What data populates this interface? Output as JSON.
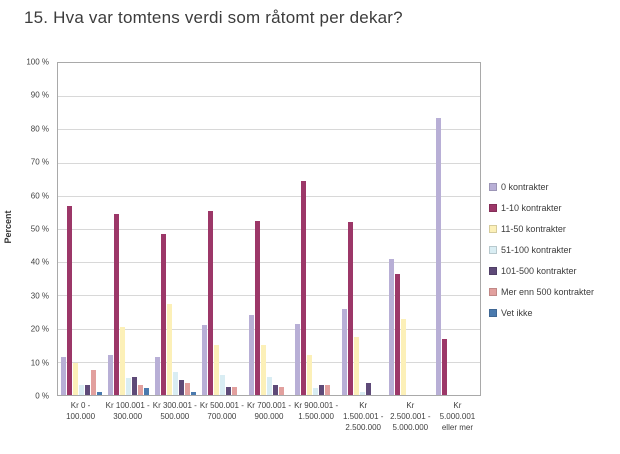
{
  "title": "15. Hva var tomtens verdi som råtomt per dekar?",
  "chart_data": {
    "type": "bar",
    "title": "15. Hva var tomtens verdi som råtomt per dekar?",
    "xlabel": "",
    "ylabel": "Percent",
    "ylim": [
      0,
      100
    ],
    "ytick_step": 10,
    "ytick_suffix": " %",
    "grid": true,
    "legend_position": "right",
    "categories": [
      "Kr 0 - 100.000",
      "Kr 100.001 - 300.000",
      "Kr 300.001 - 500.000",
      "Kr 500.001 - 700.000",
      "Kr 700.001 - 900.000",
      "Kr 900.001 - 1.500.000",
      "Kr 1.500.001 - 2.500.000",
      "Kr 2.500.001 - 5.000.000",
      "Kr 5.000.001 eller mer"
    ],
    "category_label_lines": [
      [
        "Kr 0 -",
        "100.000"
      ],
      [
        "Kr 100.001 -",
        "300.000"
      ],
      [
        "Kr 300.001 -",
        "500.000"
      ],
      [
        "Kr 500.001 -",
        "700.000"
      ],
      [
        "Kr 700.001 -",
        "900.000"
      ],
      [
        "Kr 900.001 -",
        "1.500.000"
      ],
      [
        "Kr",
        "1.500.001 -",
        "2.500.000"
      ],
      [
        "Kr",
        "2.500.001 -",
        "5.000.000"
      ],
      [
        "Kr",
        "5.000.001",
        "eller mer"
      ]
    ],
    "series": [
      {
        "name": "0 kontrakter",
        "color": "#b8afd6",
        "values": [
          11.5,
          12,
          11.5,
          21,
          24,
          21.5,
          26,
          41,
          83.5
        ]
      },
      {
        "name": "1-10 kontrakter",
        "color": "#9c3768",
        "values": [
          57,
          54.5,
          48.5,
          55.5,
          52.5,
          64.5,
          52,
          36.5,
          17
        ]
      },
      {
        "name": "11-50 kontrakter",
        "color": "#fcf0b8",
        "values": [
          9.5,
          20.5,
          27.5,
          15,
          15,
          12,
          17.5,
          23,
          0
        ]
      },
      {
        "name": "51-100 kontrakter",
        "color": "#d9edf3",
        "values": [
          3,
          5,
          7,
          6,
          5.5,
          2,
          1,
          0,
          0
        ]
      },
      {
        "name": "101-500 kontrakter",
        "color": "#5e4a78",
        "values": [
          3,
          5.5,
          4.5,
          2.5,
          3,
          3,
          3.5,
          0,
          0
        ]
      },
      {
        "name": "Mer enn 500 kontrakter",
        "color": "#e2a09e",
        "values": [
          7.5,
          3,
          3.5,
          2.5,
          2.5,
          3,
          0,
          0,
          0
        ]
      },
      {
        "name": "Vet ikke",
        "color": "#4a7aae",
        "values": [
          1,
          2,
          1,
          0,
          0,
          0,
          0,
          0,
          0
        ]
      }
    ]
  }
}
